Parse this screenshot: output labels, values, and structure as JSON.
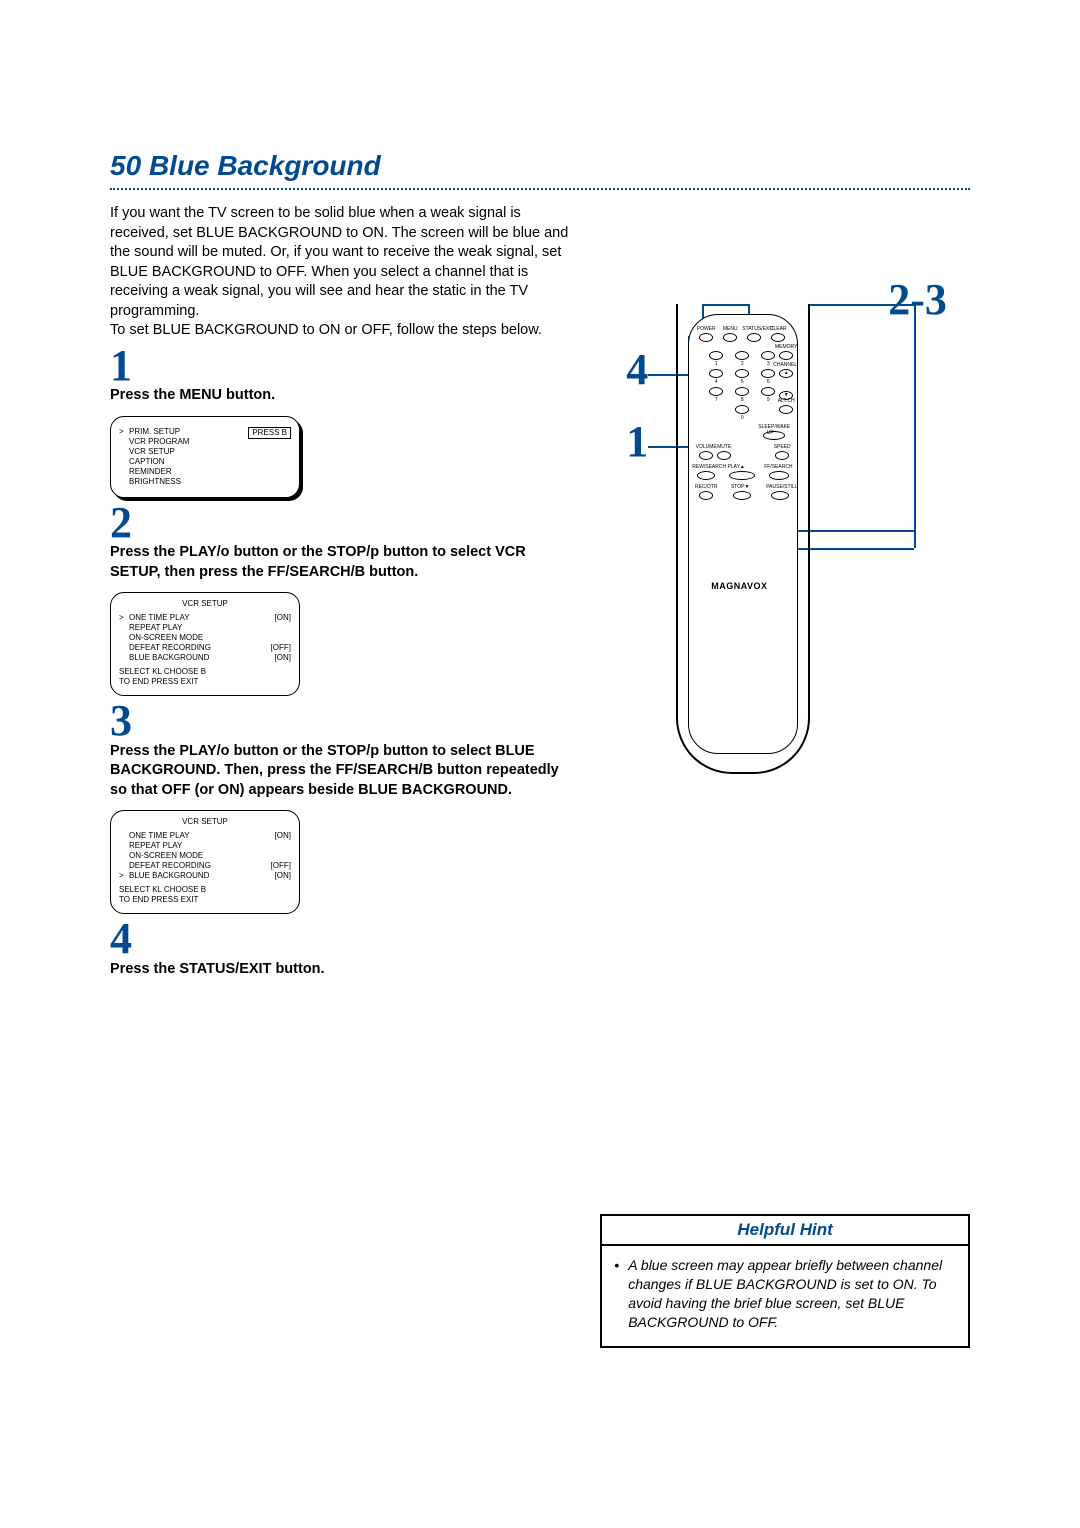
{
  "heading_number": "50",
  "heading_title": "Blue Background",
  "intro": "If you want the TV screen to be solid blue when a weak signal is received, set BLUE BACKGROUND to ON. The screen will be blue and the sound will be muted. Or, if you want to receive the weak signal, set BLUE BACKGROUND to OFF. When you select a channel that is receiving a weak signal, you will see and hear the static in the TV programming.\nTo set BLUE BACKGROUND to ON or OFF, follow the steps below.",
  "steps": {
    "s1": {
      "num": "1",
      "text": "Press the MENU button."
    },
    "s2": {
      "num": "2",
      "text": "Press the PLAY/o  button or the STOP/p  button to select VCR SETUP, then press the FF/SEARCH/B  button."
    },
    "s3": {
      "num": "3",
      "text": "Press the PLAY/o  button or the STOP/p  button to select BLUE BACKGROUND. Then, press the FF/SEARCH/B  button repeatedly so that OFF (or ON) appears beside BLUE BACKGROUND."
    },
    "s4": {
      "num": "4",
      "text": "Press the STATUS/EXIT button."
    }
  },
  "screen1": {
    "press_label": "PRESS B",
    "rows": [
      {
        "caret": ">",
        "label": "PRIM. SETUP"
      },
      {
        "caret": "",
        "label": "VCR PROGRAM"
      },
      {
        "caret": "",
        "label": "VCR SETUP"
      },
      {
        "caret": "",
        "label": "CAPTION"
      },
      {
        "caret": "",
        "label": "REMINDER"
      },
      {
        "caret": "",
        "label": "BRIGHTNESS"
      }
    ]
  },
  "screen2": {
    "title": "VCR SETUP",
    "rows": [
      {
        "caret": ">",
        "label": "ONE TIME PLAY",
        "val": "[ON]"
      },
      {
        "caret": "",
        "label": "REPEAT PLAY",
        "val": ""
      },
      {
        "caret": "",
        "label": "ON-SCREEN MODE",
        "val": ""
      },
      {
        "caret": "",
        "label": "DEFEAT RECORDING",
        "val": "[OFF]"
      },
      {
        "caret": "",
        "label": "BLUE BACKGROUND",
        "val": "[ON]"
      }
    ],
    "footer1": "SELECT KL   CHOOSE B",
    "footer2": "TO END PRESS EXIT"
  },
  "screen3": {
    "title": "VCR SETUP",
    "rows": [
      {
        "caret": "",
        "label": "ONE TIME PLAY",
        "val": "[ON]"
      },
      {
        "caret": "",
        "label": "REPEAT PLAY",
        "val": ""
      },
      {
        "caret": "",
        "label": "ON-SCREEN MODE",
        "val": ""
      },
      {
        "caret": "",
        "label": "DEFEAT RECORDING",
        "val": "[OFF]"
      },
      {
        "caret": ">",
        "label": "BLUE BACKGROUND",
        "val": "[ON]"
      }
    ],
    "footer1": "SELECT KL   CHOOSE B",
    "footer2": "TO END PRESS EXIT"
  },
  "callouts": {
    "c1": "1",
    "c23": "2-3",
    "c4": "4"
  },
  "remote": {
    "brand": "MAGNAVOX",
    "row1": [
      "POWER",
      "MENU",
      "STATUS/EXIT",
      "CLEAR"
    ],
    "numbers": [
      "1",
      "2",
      "3",
      "4",
      "5",
      "6",
      "7",
      "8",
      "9",
      "0"
    ],
    "memory": "MEMORY",
    "channel": "CHANNEL",
    "altch": "ALT.CH",
    "sleep": "SLEEP/WAKE UP",
    "volume": "VOLUME",
    "mute": "MUTE",
    "speed": "SPEED",
    "rewsearch": "REW/SEARCH",
    "play": "PLAY▲",
    "ffsearch": "FF/SEARCH",
    "recotr": "REC/OTR",
    "stop": "STOP▼",
    "pause": "PAUSE/STILL"
  },
  "hint": {
    "header": "Helpful Hint",
    "body": "A blue screen may appear briefly between channel changes if BLUE BACKGROUND is set to ON. To avoid having the brief blue screen, set BLUE BACKGROUND to OFF."
  },
  "colors": {
    "accent": "#004a8f",
    "text": "#000000",
    "background": "#ffffff"
  }
}
